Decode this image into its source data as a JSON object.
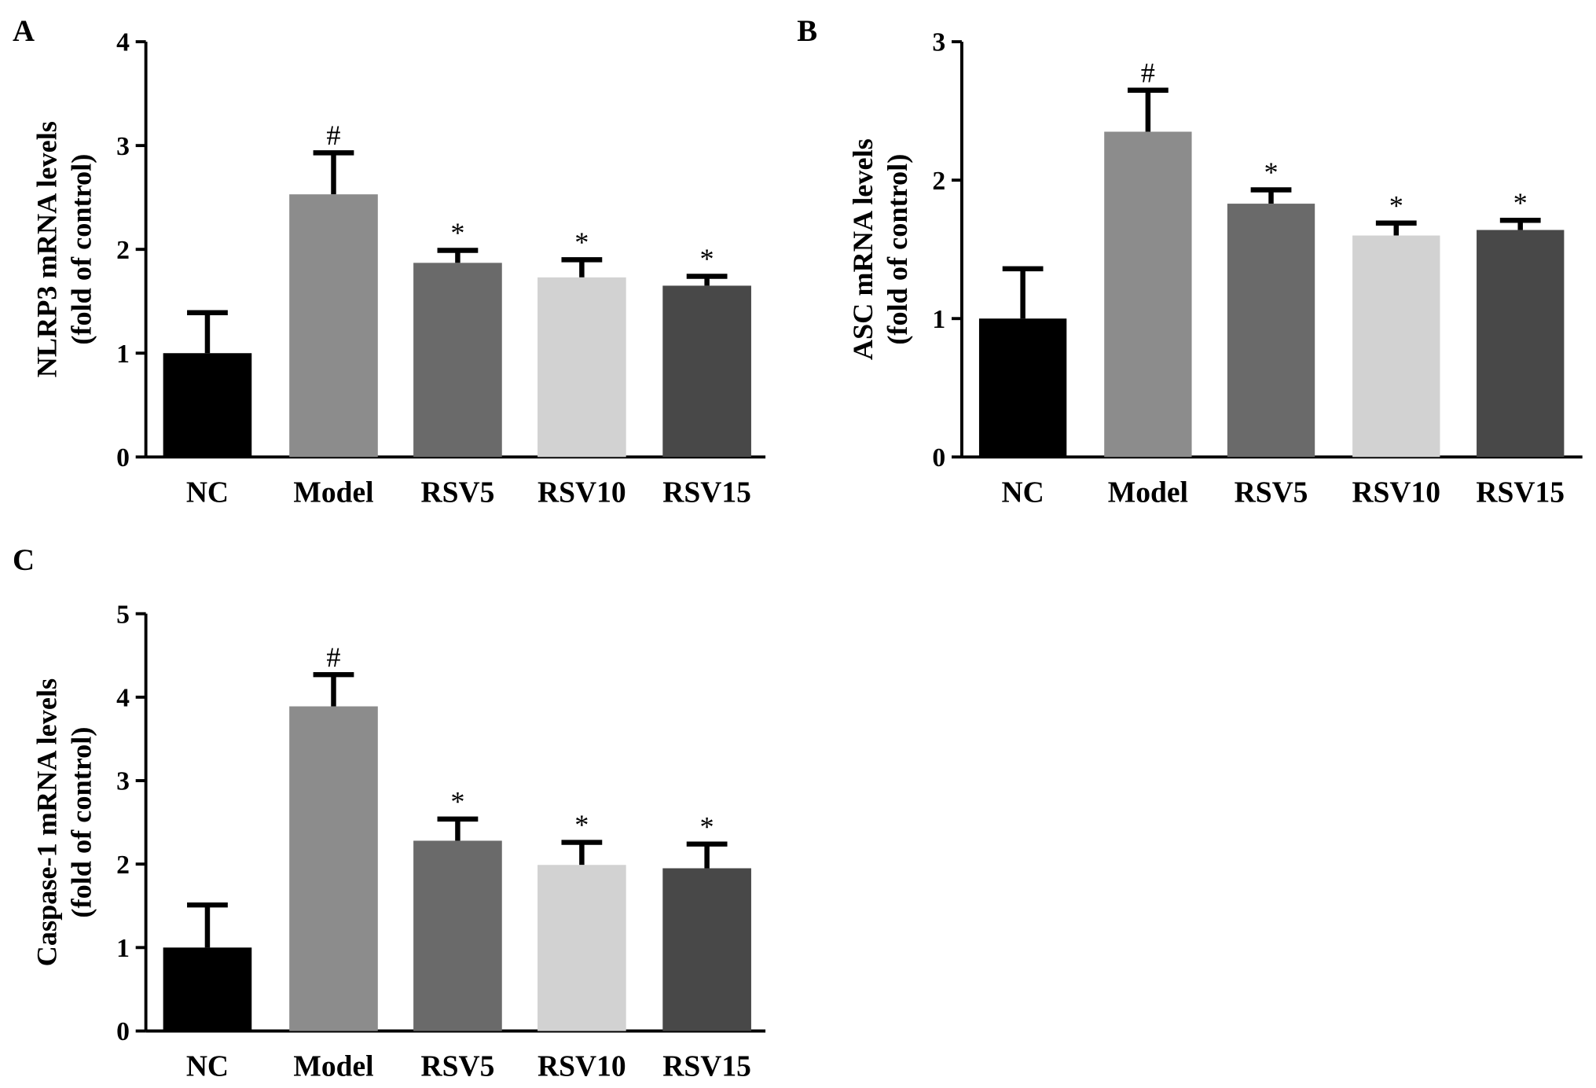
{
  "chart_data": [
    {
      "type": "bar",
      "panel": "A",
      "categories": [
        "NC",
        "Model",
        "RSV5",
        "RSV10",
        "RSV15"
      ],
      "values": [
        1.0,
        2.53,
        1.87,
        1.73,
        1.65
      ],
      "errors": [
        0.39,
        0.4,
        0.12,
        0.17,
        0.09
      ],
      "annotations": [
        "",
        "#",
        "*",
        "*",
        "*"
      ],
      "ylabel_line1": "NLRP3 mRNA levels",
      "ylabel_line2": "(fold of control)",
      "ylim": [
        0,
        4
      ],
      "yticks": [
        0,
        1,
        2,
        3,
        4
      ]
    },
    {
      "type": "bar",
      "panel": "B",
      "categories": [
        "NC",
        "Model",
        "RSV5",
        "RSV10",
        "RSV15"
      ],
      "values": [
        1.0,
        2.35,
        1.83,
        1.6,
        1.64
      ],
      "errors": [
        0.36,
        0.3,
        0.1,
        0.09,
        0.07
      ],
      "annotations": [
        "",
        "#",
        "*",
        "*",
        "*"
      ],
      "ylabel_line1": "ASC mRNA levels",
      "ylabel_line2": "(fold of control)",
      "ylim": [
        0,
        3
      ],
      "yticks": [
        0,
        1,
        2,
        3
      ]
    },
    {
      "type": "bar",
      "panel": "C",
      "categories": [
        "NC",
        "Model",
        "RSV5",
        "RSV10",
        "RSV15"
      ],
      "values": [
        1.0,
        3.89,
        2.28,
        1.99,
        1.95
      ],
      "errors": [
        0.51,
        0.38,
        0.26,
        0.27,
        0.29
      ],
      "annotations": [
        "",
        "#",
        "*",
        "*",
        "*"
      ],
      "ylabel_line1": "Caspase-1 mRNA levels",
      "ylabel_line2": "(fold of control)",
      "ylim": [
        0,
        5
      ],
      "yticks": [
        0,
        1,
        2,
        3,
        4,
        5
      ]
    }
  ],
  "bar_colors": [
    "#000000",
    "#8c8c8c",
    "#6a6a6a",
    "#d2d2d2",
    "#484848"
  ]
}
